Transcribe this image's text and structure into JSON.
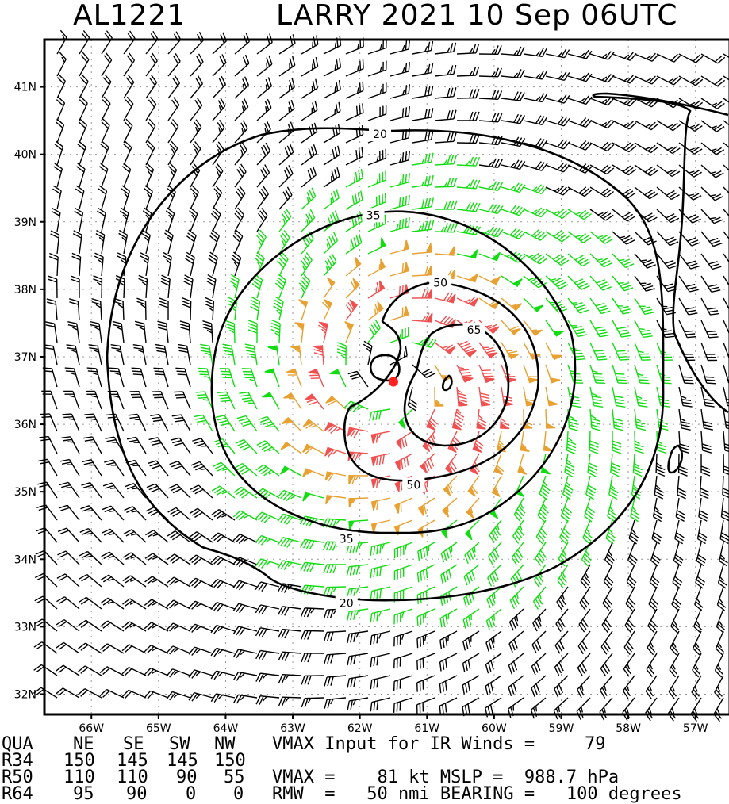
{
  "header": {
    "storm_id": "AL1221",
    "title": "LARRY 2021 10 Sep 06UTC"
  },
  "map": {
    "lat_ticks": [
      "41N",
      "40N",
      "39N",
      "38N",
      "37N",
      "36N",
      "35N",
      "34N",
      "33N",
      "32N"
    ],
    "lon_ticks": [
      "66W",
      "65W",
      "64W",
      "63W",
      "62W",
      "61W",
      "60W",
      "59W",
      "58W",
      "57W"
    ],
    "lat_range": [
      31.7,
      41.7
    ],
    "lon_range": [
      -66.7,
      -56.5
    ],
    "contour_labels": [
      "20",
      "35",
      "50",
      "65"
    ],
    "wind_colors": {
      "below_34": "#000000",
      "34_to_49": "#11dd11",
      "50_to_63": "#e8a030",
      "64_plus": "#f05050"
    },
    "center": {
      "lon": -61.5,
      "lat": 36.7,
      "color": "#ff2020"
    },
    "rmw_nmi": 50,
    "vmax_kt": 81
  },
  "table": {
    "header": [
      "QUA",
      "NE",
      "SE",
      "SW",
      "NW"
    ],
    "rows": [
      {
        "label": "R34",
        "values": [
          "150",
          "145",
          "145",
          "150"
        ]
      },
      {
        "label": "R50",
        "values": [
          "110",
          "110",
          "90",
          "55"
        ]
      },
      {
        "label": "R64",
        "values": [
          "95",
          "90",
          "0",
          "0"
        ]
      }
    ],
    "vmax_input_text": "VMAX Input for IR Winds =",
    "vmax_input_value": "79",
    "vmax_line": "VMAX =    81 kt MSLP =  988.7 hPa",
    "rmw_line": "RMW  =   50 nmi BEARING =   100 degrees"
  }
}
